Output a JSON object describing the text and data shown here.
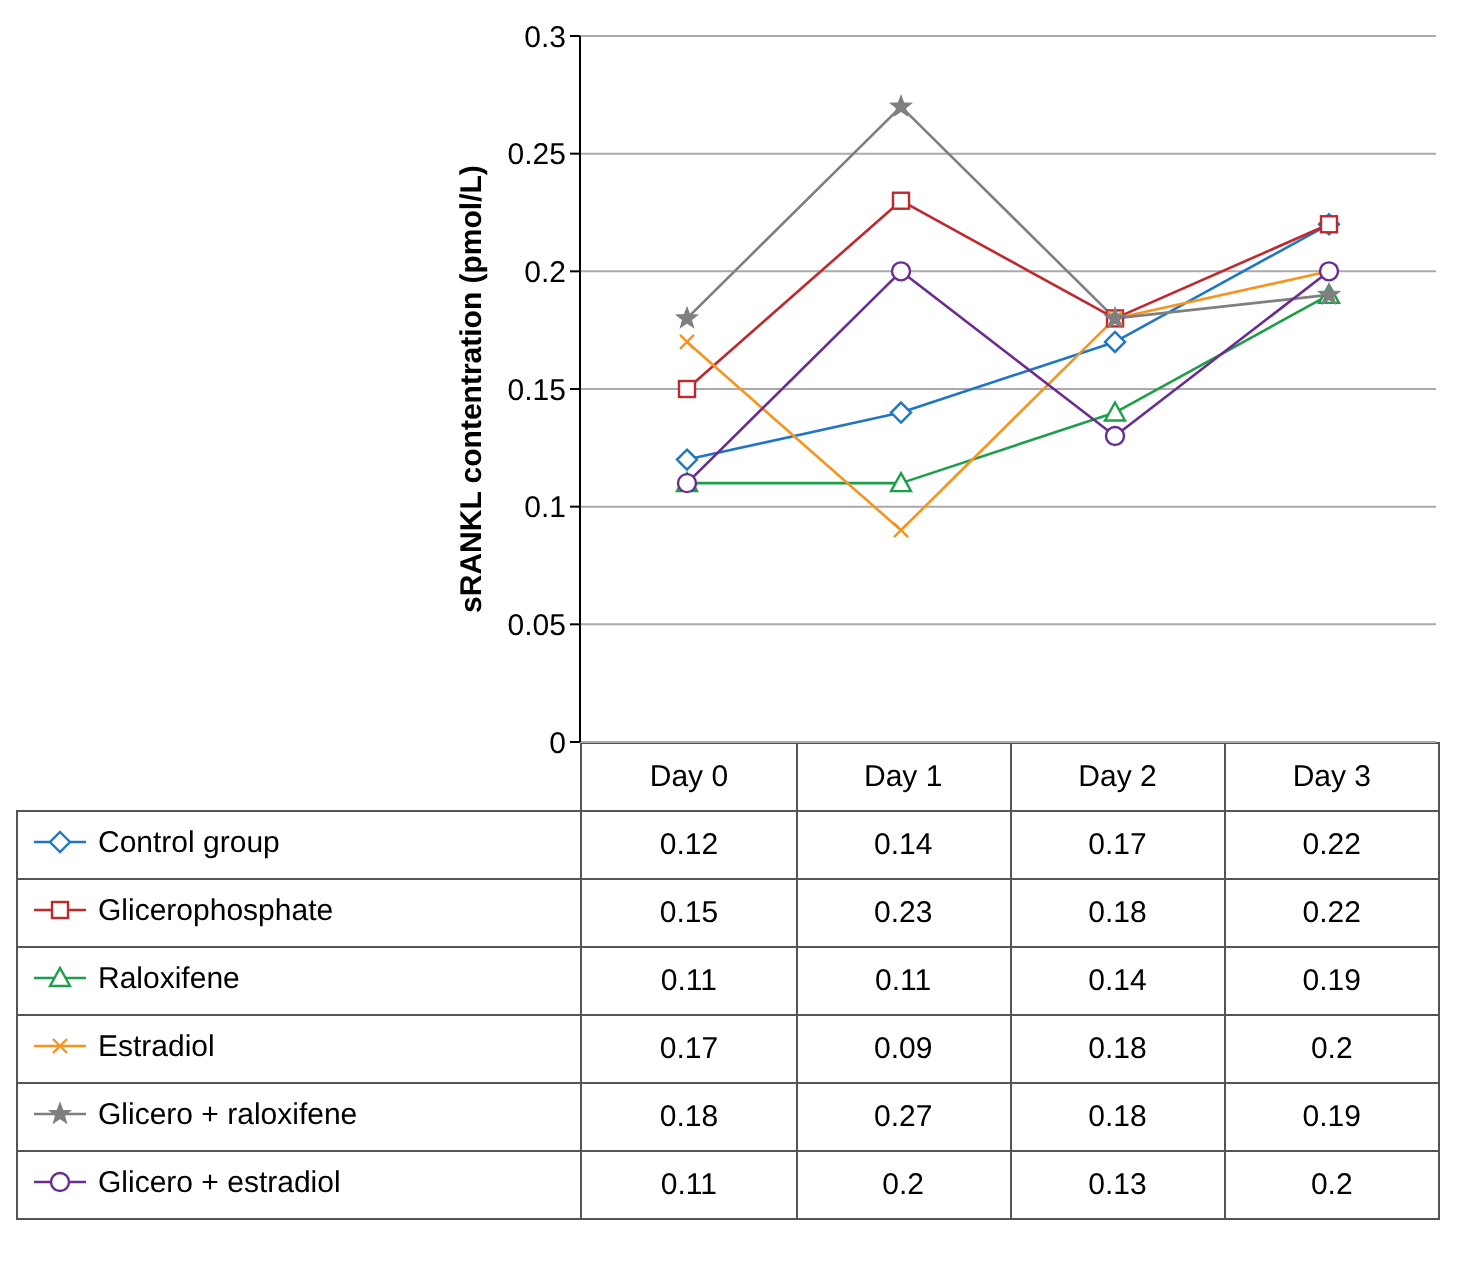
{
  "chart_data": {
    "type": "line",
    "ylabel": "sRANKL contentration (pmol/L)",
    "categories": [
      "Day 0",
      "Day 1",
      "Day 2",
      "Day 3"
    ],
    "ylim": [
      0,
      0.3
    ],
    "yticks": [
      0,
      0.05,
      0.1,
      0.15,
      0.2,
      0.25,
      0.3
    ],
    "grid": "y",
    "legend": "bottom",
    "data_labels": true,
    "series": [
      {
        "name": "Control group",
        "color": "#1f77c4",
        "marker": "diamond",
        "values": [
          0.12,
          0.14,
          0.17,
          0.22
        ]
      },
      {
        "name": "Glicerophosphate",
        "color": "#c0282d",
        "marker": "square",
        "values": [
          0.15,
          0.23,
          0.18,
          0.22
        ]
      },
      {
        "name": "Raloxifene",
        "color": "#1e9e4a",
        "marker": "triangle",
        "values": [
          0.11,
          0.11,
          0.14,
          0.19
        ]
      },
      {
        "name": "Estradiol",
        "color": "#f7941d",
        "marker": "cross",
        "values": [
          0.17,
          0.09,
          0.18,
          0.2
        ]
      },
      {
        "name": "Glicero + raloxifene",
        "color": "#7f7f7f",
        "marker": "star",
        "values": [
          0.18,
          0.27,
          0.18,
          0.19
        ]
      },
      {
        "name": "Glicero + estradiol",
        "color": "#6a2c91",
        "marker": "circle",
        "values": [
          0.11,
          0.2,
          0.13,
          0.2
        ]
      }
    ]
  }
}
